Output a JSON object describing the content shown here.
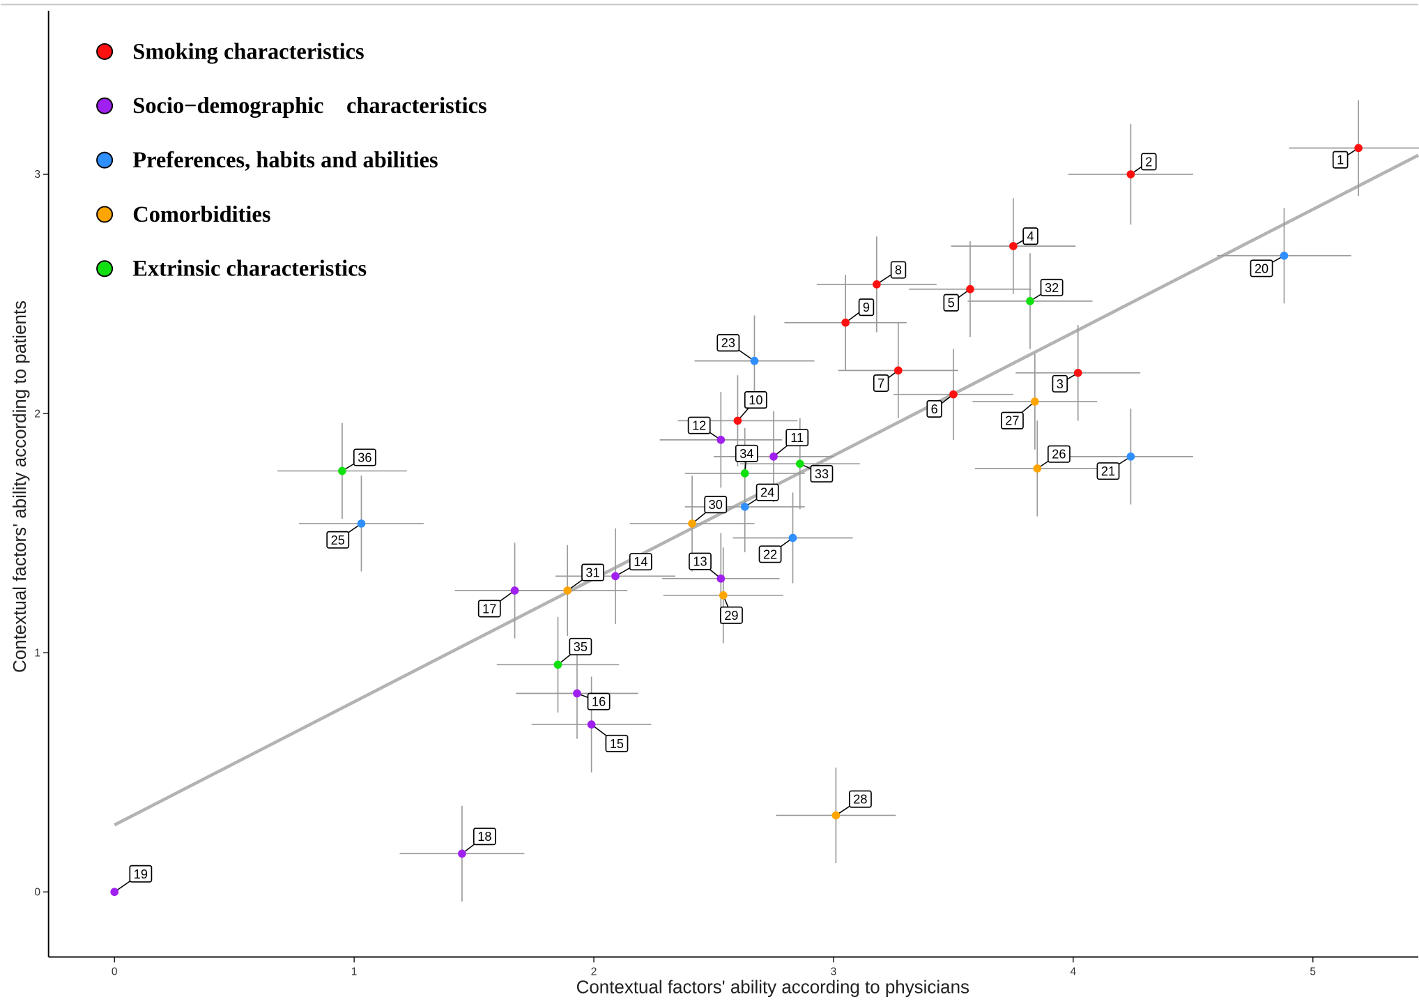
{
  "chart_data": {
    "type": "scatter",
    "x_label": "Contextual factors' ability according to physicians",
    "y_label": "Contextual factors' ability according to patients",
    "xlim": [
      -0.275,
      5.44
    ],
    "ylim": [
      -0.272,
      3.71
    ],
    "xticks": [
      0,
      1,
      2,
      3,
      4,
      5
    ],
    "yticks": [
      0,
      1,
      2,
      3
    ],
    "trend_line": {
      "x": [
        0,
        5.44
      ],
      "y": [
        0.28,
        3.08
      ],
      "color": "#b3b3b3"
    },
    "series": [
      {
        "name": "Smoking characteristics",
        "color": "#ff1010",
        "labels": [
          "1",
          "2",
          "3",
          "4",
          "5",
          "6",
          "7",
          "8",
          "9",
          "10"
        ],
        "x": [
          5.19,
          4.24,
          4.02,
          3.75,
          3.57,
          3.5,
          3.27,
          3.18,
          3.05,
          2.6
        ],
        "values": [
          3.11,
          3.0,
          2.17,
          2.7,
          2.52,
          2.08,
          2.18,
          2.54,
          2.38,
          1.97
        ],
        "xerr": [
          0.29,
          0.26,
          0.26,
          0.26,
          0.255,
          0.25,
          0.25,
          0.25,
          0.255,
          0.25
        ],
        "yerr": [
          0.2,
          0.21,
          0.2,
          0.2,
          0.2,
          0.19,
          0.2,
          0.2,
          0.2,
          0.19
        ]
      },
      {
        "name": "Socio−demographic    characteristics",
        "color": "#a020f0",
        "labels": [
          "11",
          "12",
          "13",
          "14",
          "15",
          "16",
          "17",
          "18",
          "19"
        ],
        "x": [
          2.75,
          2.53,
          2.53,
          2.09,
          1.99,
          1.93,
          1.67,
          1.45,
          0
        ],
        "values": [
          1.82,
          1.89,
          1.31,
          1.32,
          0.7,
          0.83,
          1.26,
          0.16,
          0
        ],
        "xerr": [
          0.25,
          0.255,
          0.245,
          0.25,
          0.25,
          0.255,
          0.25,
          0.26,
          0
        ],
        "yerr": [
          0.19,
          0.2,
          0.19,
          0.2,
          0.2,
          0.19,
          0.2,
          0.2,
          0
        ]
      },
      {
        "name": "Preferences, habits and abilities",
        "color": "#2f8fff",
        "labels": [
          "20",
          "21",
          "22",
          "23",
          "24",
          "25"
        ],
        "x": [
          4.88,
          4.24,
          2.83,
          2.67,
          2.63,
          1.03
        ],
        "values": [
          2.66,
          1.82,
          1.48,
          2.22,
          1.61,
          1.54
        ],
        "xerr": [
          0.28,
          0.26,
          0.25,
          0.25,
          0.25,
          0.26
        ],
        "yerr": [
          0.2,
          0.2,
          0.19,
          0.19,
          0.19,
          0.2
        ]
      },
      {
        "name": "Comorbidities",
        "color": "#ffa500",
        "labels": [
          "26",
          "27",
          "28",
          "29",
          "30",
          "31"
        ],
        "x": [
          3.85,
          3.84,
          3.01,
          2.54,
          2.41,
          1.89
        ],
        "values": [
          1.77,
          2.05,
          0.32,
          1.24,
          1.54,
          1.26
        ],
        "xerr": [
          0.26,
          0.26,
          0.25,
          0.25,
          0.26,
          0.25
        ],
        "yerr": [
          0.2,
          0.2,
          0.2,
          0.2,
          0.2,
          0.19
        ]
      },
      {
        "name": "Extrinsic characteristics",
        "color": "#10e010",
        "labels": [
          "32",
          "33",
          "34",
          "35",
          "36"
        ],
        "x": [
          3.82,
          2.86,
          2.63,
          1.85,
          0.95
        ],
        "values": [
          2.47,
          1.79,
          1.75,
          0.95,
          1.76
        ],
        "xerr": [
          0.26,
          0.25,
          0.25,
          0.255,
          0.27
        ],
        "yerr": [
          0.2,
          0.19,
          0.19,
          0.2,
          0.2
        ]
      }
    ]
  }
}
